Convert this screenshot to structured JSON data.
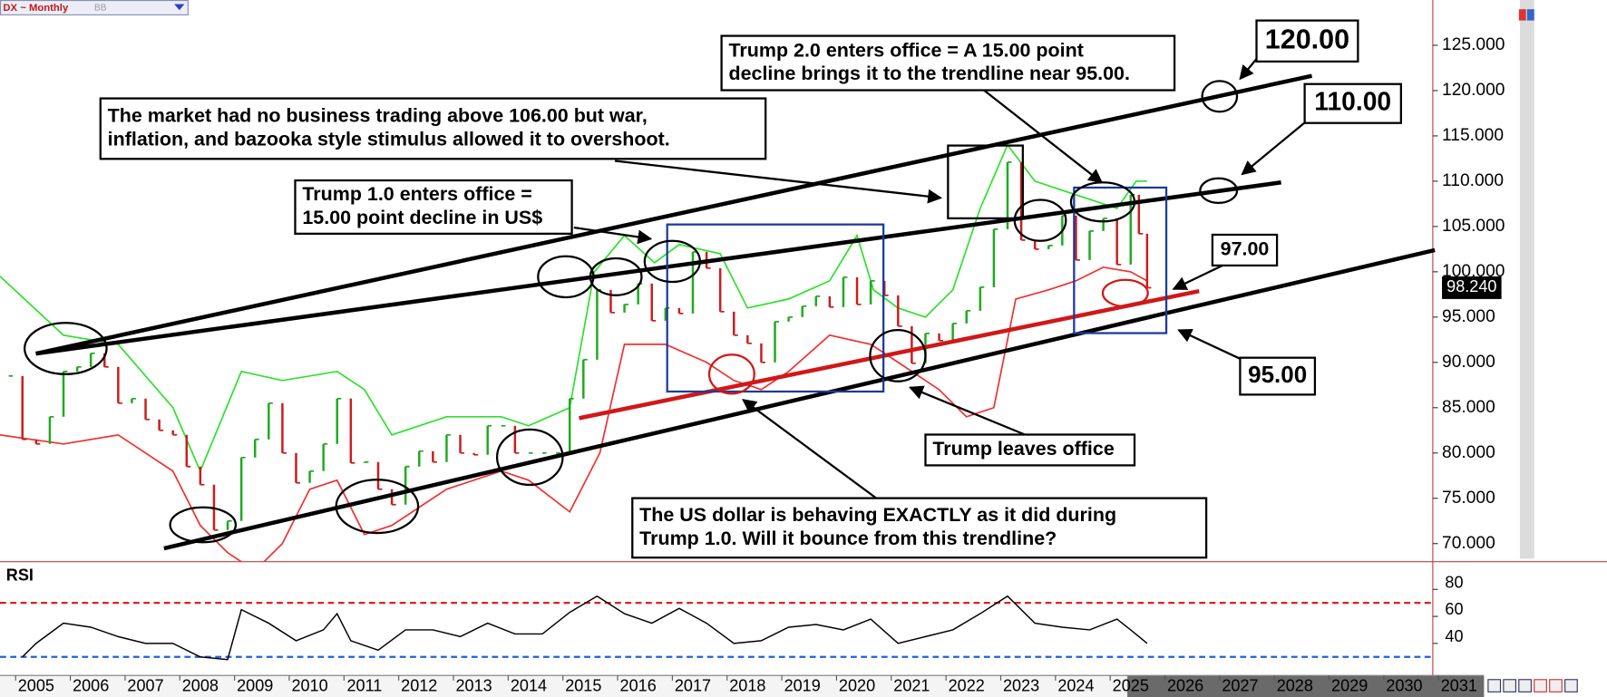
{
  "header": {
    "symbol": "DX ~ Monthly",
    "study": "BB"
  },
  "chart_data": [
    {
      "type": "price",
      "x": [
        2004.5,
        2004.75,
        2005.0,
        2005.25,
        2005.5,
        2005.75,
        2006.0,
        2006.25,
        2006.5,
        2006.75,
        2007.0,
        2007.25,
        2007.5,
        2007.75,
        2008.0,
        2008.25,
        2008.5,
        2008.75,
        2009.0,
        2009.25,
        2009.5,
        2009.75,
        2010.0,
        2010.25,
        2010.5,
        2010.75,
        2011.0,
        2011.25,
        2011.5,
        2011.75,
        2012.0,
        2012.25,
        2012.5,
        2012.75,
        2013.0,
        2013.25,
        2013.5,
        2013.75,
        2014.0,
        2014.25,
        2014.5,
        2014.75,
        2015.0,
        2015.25,
        2015.5,
        2015.75,
        2016.0,
        2016.25,
        2016.5,
        2016.75,
        2017.0,
        2017.25,
        2017.5,
        2017.75,
        2018.0,
        2018.25,
        2018.5,
        2018.75,
        2019.0,
        2019.25,
        2019.5,
        2019.75,
        2020.0,
        2020.25,
        2020.5,
        2020.75,
        2021.0,
        2021.25,
        2021.5,
        2021.75,
        2022.0,
        2022.25,
        2022.5,
        2022.75,
        2023.0,
        2023.25,
        2023.5,
        2023.75,
        2024.0,
        2024.25,
        2024.5,
        2024.75,
        2025.0,
        2025.15,
        2025.3
      ],
      "values": [
        88.5,
        81.5,
        81.0,
        84.0,
        89.0,
        89.5,
        91.0,
        89.5,
        85.5,
        86.0,
        83.7,
        82.5,
        82.0,
        78.5,
        76.5,
        71.5,
        72.5,
        79.5,
        81.5,
        85.5,
        80.0,
        76.7,
        78.0,
        81.0,
        86.0,
        78.9,
        79.0,
        76.0,
        74.3,
        78.5,
        80.2,
        79.0,
        82.0,
        80.0,
        79.8,
        83.0,
        83.0,
        80.0,
        80.0,
        80.0,
        80.0,
        86.0,
        90.3,
        98.0,
        95.5,
        96.4,
        98.7,
        94.6,
        96.0,
        95.4,
        102.2,
        100.4,
        95.6,
        93.0,
        92.1,
        90.0,
        94.5,
        95.0,
        96.2,
        97.3,
        96.1,
        99.4,
        96.4,
        99.0,
        97.4,
        94.0,
        89.9,
        93.2,
        92.4,
        94.3,
        95.7,
        98.3,
        104.7,
        112.1,
        103.5,
        102.5,
        102.9,
        106.2,
        101.3,
        104.5,
        105.9,
        100.8,
        108.5,
        104.2,
        98.24
      ],
      "up_color": "#1faa1f",
      "down_color": "#c81e1e",
      "upper_band": {
        "color": "#2ee02e",
        "x": [
          2004.34,
          2005.5,
          2006.5,
          2007.5,
          2008.0,
          2008.75,
          2009.5,
          2010.5,
          2011.0,
          2011.5,
          2012.5,
          2013.5,
          2014.0,
          2014.75,
          2015.2,
          2015.75,
          2016.3,
          2016.75,
          2017.5,
          2018.0,
          2018.75,
          2019.5,
          2020.0,
          2020.3,
          2020.75,
          2021.25,
          2021.75,
          2022.25,
          2022.75,
          2023.25,
          2023.75,
          2024.25,
          2024.75,
          2025.1,
          2025.3
        ],
        "values": [
          99.5,
          93,
          92,
          85,
          78,
          89,
          88,
          89,
          87,
          82,
          84,
          84,
          83,
          85,
          100,
          104,
          101,
          103,
          102,
          96,
          97,
          99,
          104,
          98,
          96,
          95,
          98,
          107,
          114,
          110,
          109,
          108,
          107,
          110,
          110
        ]
      },
      "lower_band": {
        "color": "#f03030",
        "x": [
          2004.34,
          2005.5,
          2006.5,
          2007.5,
          2008.0,
          2008.5,
          2009.0,
          2009.5,
          2010.0,
          2010.5,
          2011.0,
          2011.5,
          2012.5,
          2013.5,
          2014.0,
          2014.75,
          2015.3,
          2015.75,
          2016.5,
          2017.25,
          2017.75,
          2018.25,
          2018.75,
          2019.5,
          2020.25,
          2020.75,
          2021.5,
          2022.0,
          2022.5,
          2022.9,
          2023.5,
          2024.0,
          2024.5,
          2025.0,
          2025.3
        ],
        "values": [
          82,
          81,
          82,
          78,
          72,
          69,
          67,
          70,
          76,
          77,
          71,
          72,
          76,
          78,
          77,
          73.5,
          80,
          92,
          92,
          90,
          88,
          87,
          89,
          93,
          92,
          90,
          87,
          84,
          85,
          97,
          98,
          99,
          100.5,
          100,
          99
        ]
      },
      "ylim": [
        68,
        130
      ],
      "yticks": [
        {
          "value": 70,
          "label": "70.000"
        },
        {
          "value": 75,
          "label": "75.000"
        },
        {
          "value": 80,
          "label": "80.000"
        },
        {
          "value": 85,
          "label": "85.000"
        },
        {
          "value": 90,
          "label": "90.000"
        },
        {
          "value": 95,
          "label": "95.000"
        },
        {
          "value": 100,
          "label": "100.000"
        },
        {
          "value": 105,
          "label": "105.000"
        },
        {
          "value": 110,
          "label": "110.000"
        },
        {
          "value": 115,
          "label": "115.000"
        },
        {
          "value": 120,
          "label": "120.000"
        },
        {
          "value": 125,
          "label": "125.000"
        }
      ],
      "xlim": [
        2004.34,
        2031.4
      ],
      "xticks": [
        2005,
        2006,
        2007,
        2008,
        2009,
        2010,
        2011,
        2012,
        2013,
        2014,
        2015,
        2016,
        2017,
        2018,
        2019,
        2020,
        2021,
        2022,
        2023,
        2024,
        2025,
        2026,
        2027,
        2028,
        2029,
        2030,
        2031
      ],
      "last_value": 98.24,
      "last_value_label": "98.240"
    },
    {
      "type": "line",
      "title": "RSI",
      "color": "#000000",
      "x": [
        2004.75,
        2005.0,
        2005.5,
        2006.0,
        2006.5,
        2007.0,
        2007.5,
        2008.0,
        2008.5,
        2008.75,
        2009.25,
        2009.75,
        2010.25,
        2010.5,
        2010.75,
        2011.25,
        2011.75,
        2012.25,
        2012.75,
        2013.25,
        2013.75,
        2014.25,
        2014.75,
        2015.25,
        2015.75,
        2016.25,
        2016.75,
        2017.25,
        2017.75,
        2018.25,
        2018.75,
        2019.25,
        2019.75,
        2020.25,
        2020.75,
        2021.25,
        2021.75,
        2022.25,
        2022.75,
        2023.25,
        2023.75,
        2024.25,
        2024.75,
        2025.0,
        2025.3
      ],
      "values": [
        30,
        40,
        55,
        52,
        45,
        40,
        40,
        30,
        28,
        65,
        55,
        42,
        50,
        62,
        42,
        35,
        50,
        50,
        45,
        55,
        47,
        47,
        63,
        75,
        62,
        55,
        66,
        55,
        40,
        42,
        52,
        54,
        50,
        58,
        40,
        45,
        50,
        62,
        75,
        55,
        52,
        50,
        58,
        50,
        40
      ],
      "levels": [
        {
          "value": 70,
          "color": "#e02020"
        },
        {
          "value": 30,
          "color": "#2060e0"
        }
      ],
      "ylim": [
        17,
        99
      ],
      "yticks": [
        40,
        60,
        80
      ]
    }
  ],
  "annotations": [
    {
      "lines": [
        "Trump 2.0 enters office = A 15.00 point",
        "decline brings it to the trendline near 95.00."
      ]
    },
    {
      "lines": [
        "The market had no business trading above 106.00 but war,",
        "inflation, and bazooka style stimulus allowed it to overshoot."
      ]
    },
    {
      "lines": [
        "Trump 1.0 enters office =",
        " 15.00 point decline in US$"
      ]
    },
    {
      "lines": [
        "Trump leaves office"
      ]
    },
    {
      "lines": [
        "The US dollar is behaving EXACTLY as it did during",
        "Trump 1.0. Will it bounce from this trendline?"
      ]
    },
    {
      "lines": [
        "120.00"
      ]
    },
    {
      "lines": [
        "110.00"
      ]
    },
    {
      "lines": [
        "97.00"
      ]
    },
    {
      "lines": [
        "95.00"
      ]
    }
  ]
}
